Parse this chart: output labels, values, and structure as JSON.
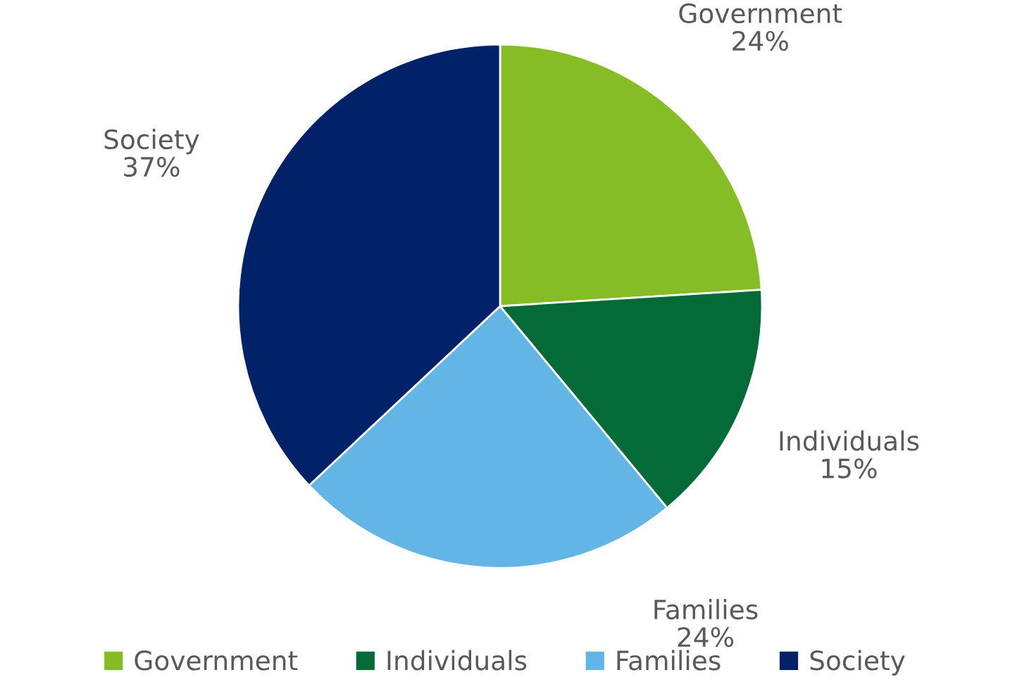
{
  "chart_data": {
    "type": "pie",
    "categories": [
      "Government",
      "Individuals",
      "Families",
      "Society"
    ],
    "values": [
      24,
      15,
      24,
      37
    ],
    "colors": [
      "#86bc25",
      "#046a38",
      "#62b5e5",
      "#012169"
    ],
    "value_labels": [
      "24%",
      "15%",
      "24%",
      "37%"
    ],
    "legend": "bottom"
  }
}
